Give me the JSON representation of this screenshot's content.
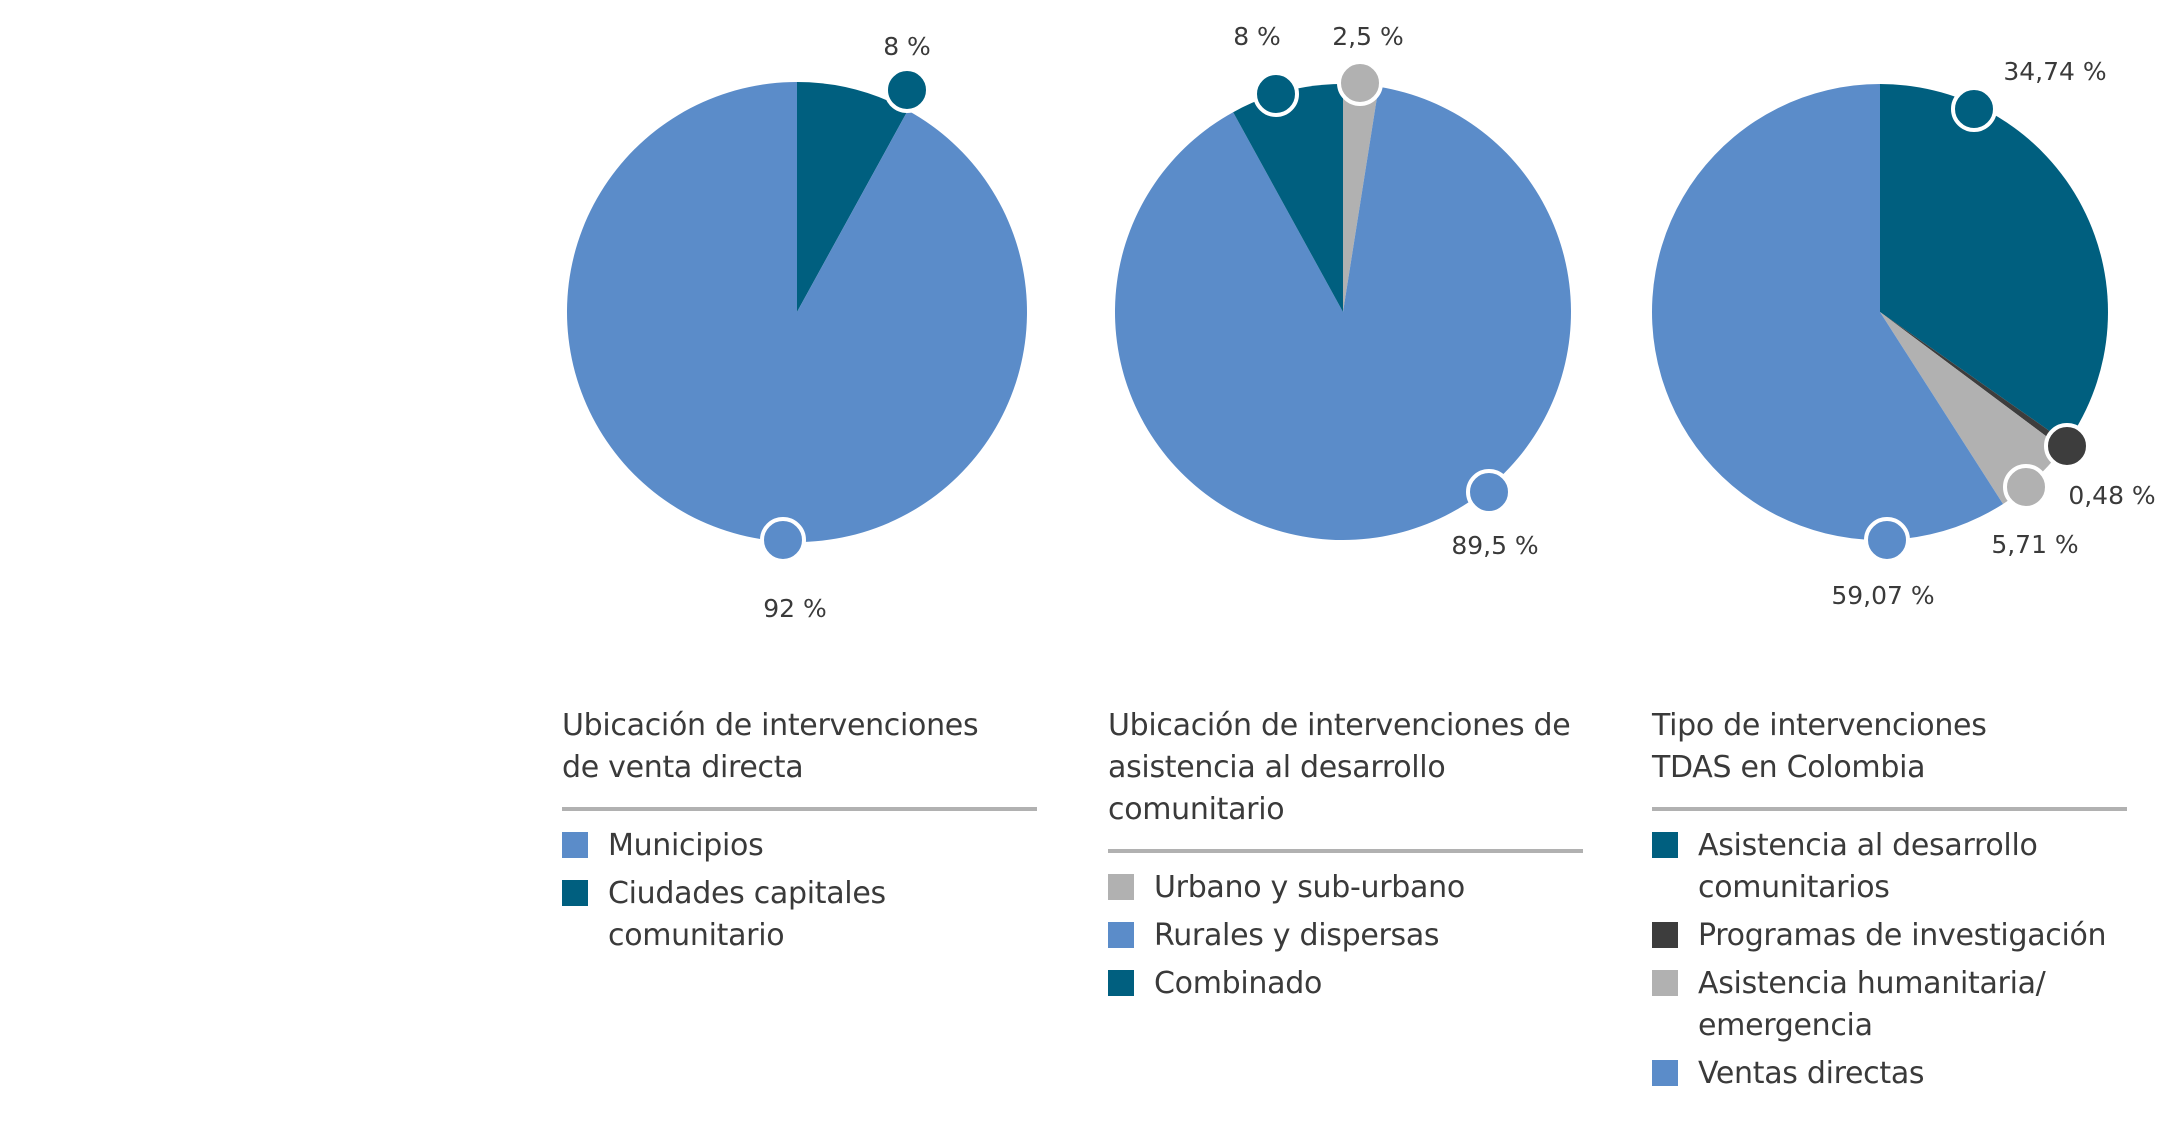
{
  "colors": {
    "light_blue": "#5b8cc9",
    "teal": "#005f7f",
    "light_gray": "#b1b1b1",
    "dark_gray": "#3d3d3d"
  },
  "chart_data": [
    {
      "type": "pie",
      "title": "Ubicación de intervenciones\nde venta directa",
      "slices": [
        {
          "name": "Ciudades capitales\ncomunitario",
          "value": 8,
          "label": "8 %",
          "color": "#005f7f"
        },
        {
          "name": "Municipios",
          "value": 92,
          "label": "92 %",
          "color": "#5b8cc9"
        }
      ],
      "legend": [
        {
          "label": "Municipios",
          "color": "#5b8cc9"
        },
        {
          "label": "Ciudades capitales\ncomunitario",
          "color": "#005f7f"
        }
      ]
    },
    {
      "type": "pie",
      "title": "Ubicación de intervenciones de\nasistencia al desarrollo comunitario",
      "slices": [
        {
          "name": "Urbano y sub-urbano",
          "value": 2.5,
          "label": "2,5 %",
          "color": "#b1b1b1"
        },
        {
          "name": "Rurales y dispersas",
          "value": 89.5,
          "label": "89,5 %",
          "color": "#5b8cc9"
        },
        {
          "name": "Combinado",
          "value": 8,
          "label": "8 %",
          "color": "#005f7f"
        }
      ],
      "legend": [
        {
          "label": "Urbano y sub-urbano",
          "color": "#b1b1b1"
        },
        {
          "label": "Rurales y dispersas",
          "color": "#5b8cc9"
        },
        {
          "label": "Combinado",
          "color": "#005f7f"
        }
      ]
    },
    {
      "type": "pie",
      "title": "Tipo de intervenciones\nTDAS en Colombia",
      "slices": [
        {
          "name": "Asistencia al desarrollo\ncomunitarios",
          "value": 34.74,
          "label": "34,74 %",
          "color": "#005f7f"
        },
        {
          "name": "Programas de investigación",
          "value": 0.48,
          "label": "0,48 %",
          "color": "#3d3d3d"
        },
        {
          "name": "Asistencia humanitaria/\nemergencia",
          "value": 5.71,
          "label": "5,71 %",
          "color": "#b1b1b1"
        },
        {
          "name": "Ventas directas",
          "value": 59.07,
          "label": "59,07 %",
          "color": "#5b8cc9"
        }
      ],
      "legend": [
        {
          "label": "Asistencia al desarrollo\ncomunitarios",
          "color": "#005f7f"
        },
        {
          "label": "Programas de investigación",
          "color": "#3d3d3d"
        },
        {
          "label": "Asistencia humanitaria/\nemergencia",
          "color": "#b1b1b1"
        },
        {
          "label": "Ventas directas",
          "color": "#5b8cc9"
        }
      ]
    }
  ]
}
